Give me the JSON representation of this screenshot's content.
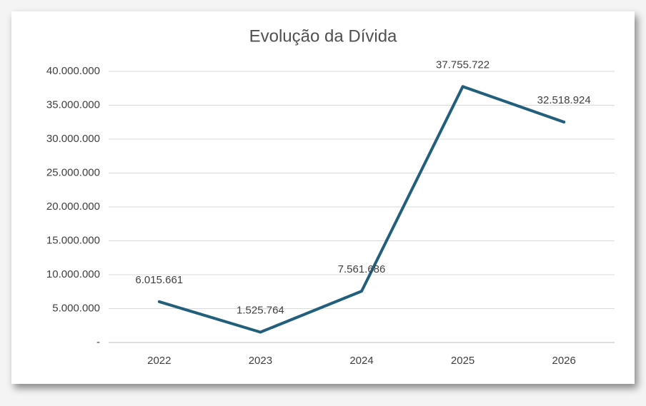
{
  "chart_data": {
    "type": "line",
    "title": "Evolução da Dívida",
    "categories": [
      "2022",
      "2023",
      "2024",
      "2025",
      "2026"
    ],
    "series": [
      {
        "color": "#215f7d",
        "values": [
          6015661,
          1525764,
          7561686,
          37755722,
          32518924
        ],
        "value_labels": [
          "6.015.661",
          "1.525.764",
          "7.561.686",
          "37.755.722",
          "32.518.924"
        ]
      }
    ],
    "ylim": [
      0,
      40000000
    ],
    "yticks": [
      {
        "value": 0,
        "label": "-"
      },
      {
        "value": 5000000,
        "label": "5.000.000"
      },
      {
        "value": 10000000,
        "label": "10.000.000"
      },
      {
        "value": 15000000,
        "label": "15.000.000"
      },
      {
        "value": 20000000,
        "label": "20.000.000"
      },
      {
        "value": 25000000,
        "label": "25.000.000"
      },
      {
        "value": 30000000,
        "label": "30.000.000"
      },
      {
        "value": 35000000,
        "label": "35.000.000"
      },
      {
        "value": 40000000,
        "label": "40.000.000"
      }
    ],
    "grid": true
  }
}
